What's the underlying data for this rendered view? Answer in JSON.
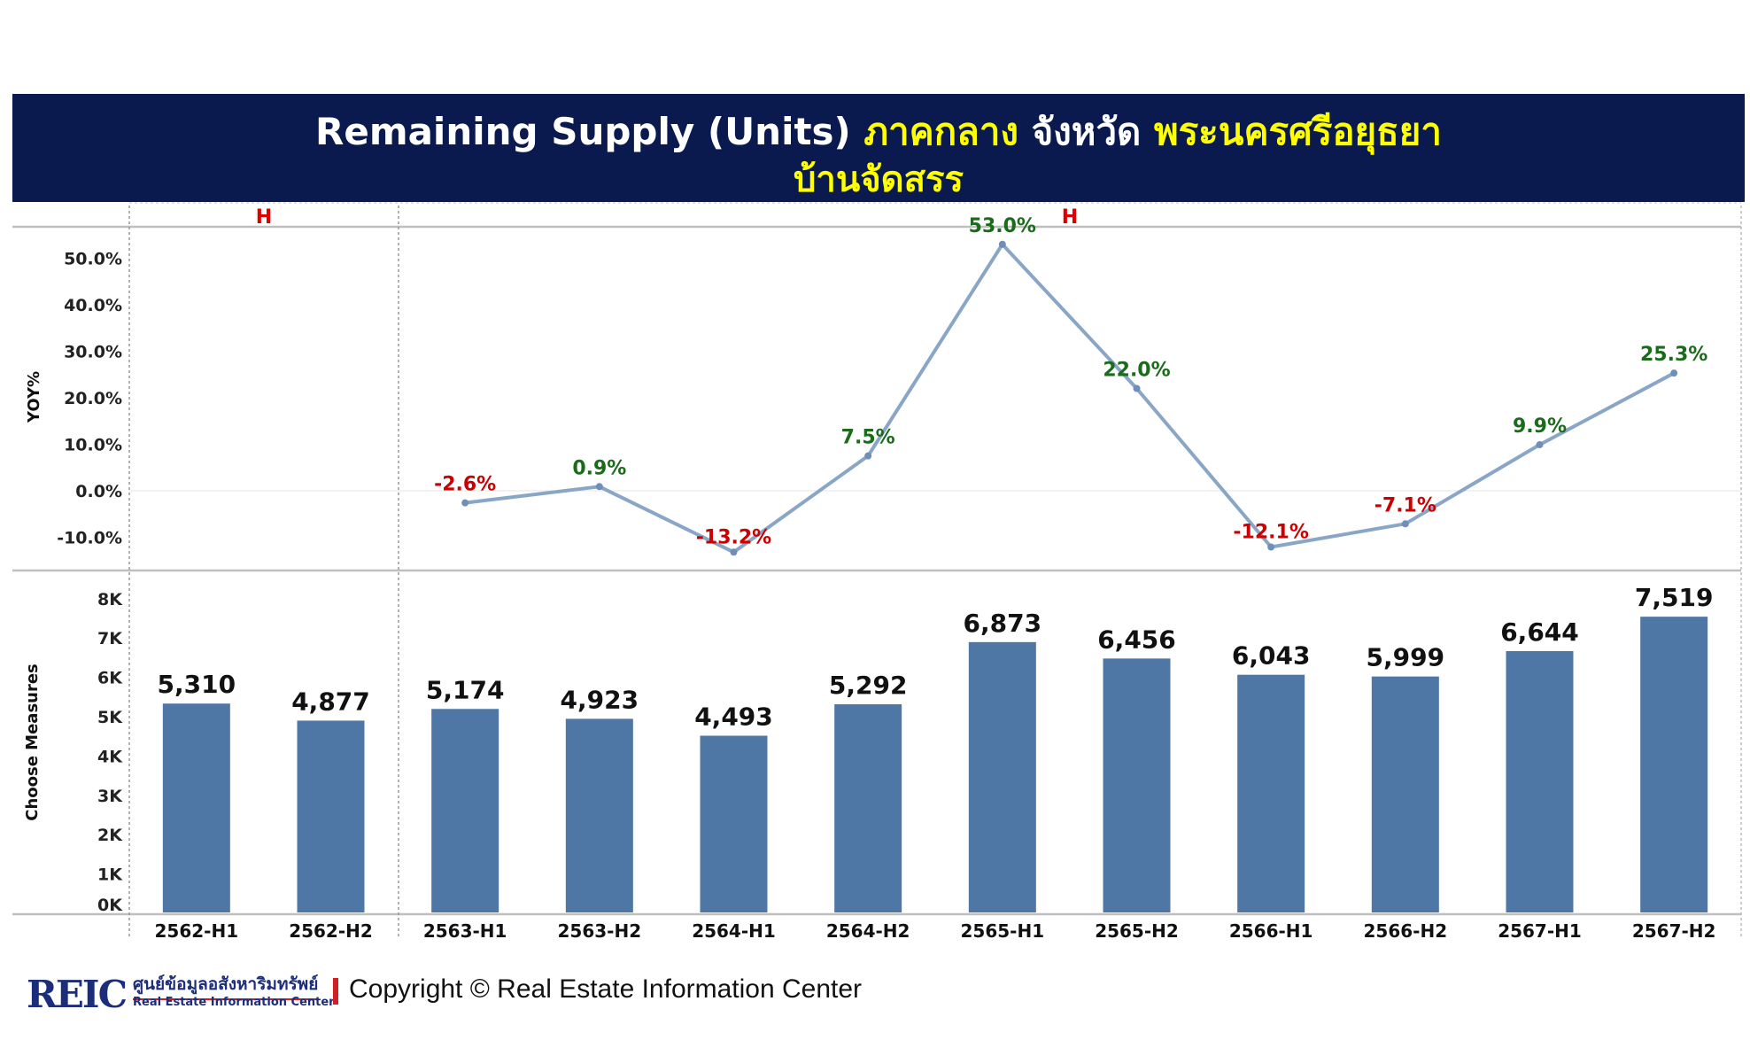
{
  "title": {
    "part1": "Remaining Supply (Units)",
    "region": "ภาคกลาง",
    "province_label": "จังหวัด",
    "province": "พระนครศรีอยุธยา",
    "subtitle": "บ้านจัดสรร"
  },
  "colors": {
    "banner": "#0a1a4f",
    "highlight": "#ffff00",
    "bar": "#4f77a6",
    "line": "#8aa6c6",
    "positive_label": "#1a6b1a",
    "negative_label": "#cc0000",
    "h_label": "#dd0000"
  },
  "chart_data": [
    {
      "type": "line",
      "ylabel": "YOY%",
      "section_labels": [
        "H",
        "H"
      ],
      "yticks": [
        "50.0%",
        "40.0%",
        "30.0%",
        "20.0%",
        "10.0%",
        "0.0%",
        "-10.0%"
      ],
      "ylim": [
        -13.2,
        53.0
      ],
      "categories": [
        "2562-H1",
        "2562-H2",
        "2563-H1",
        "2563-H2",
        "2564-H1",
        "2564-H2",
        "2565-H1",
        "2565-H2",
        "2566-H1",
        "2566-H2",
        "2567-H1",
        "2567-H2"
      ],
      "values": [
        null,
        null,
        -2.6,
        0.9,
        -13.2,
        7.5,
        53.0,
        22.0,
        -12.1,
        -7.1,
        9.9,
        25.3
      ],
      "labels": [
        "",
        "",
        "-2.6%",
        "0.9%",
        "-13.2%",
        "7.5%",
        "53.0%",
        "22.0%",
        "-12.1%",
        "-7.1%",
        "9.9%",
        "25.3%"
      ]
    },
    {
      "type": "bar",
      "ylabel": "Choose Measures",
      "yticks": [
        "8K",
        "7K",
        "6K",
        "5K",
        "4K",
        "3K",
        "2K",
        "1K",
        "0K"
      ],
      "ylim": [
        0,
        8000
      ],
      "categories": [
        "2562-H1",
        "2562-H2",
        "2563-H1",
        "2563-H2",
        "2564-H1",
        "2564-H2",
        "2565-H1",
        "2565-H2",
        "2566-H1",
        "2566-H2",
        "2567-H1",
        "2567-H2"
      ],
      "values": [
        5310,
        4877,
        5174,
        4923,
        4493,
        5292,
        6873,
        6456,
        6043,
        5999,
        6644,
        7519
      ],
      "labels": [
        "5,310",
        "4,877",
        "5,174",
        "4,923",
        "4,493",
        "5,292",
        "6,873",
        "6,456",
        "6,043",
        "5,999",
        "6,644",
        "7,519"
      ]
    }
  ],
  "footer": {
    "logo_text": "REIC",
    "logo_th": "ศูนย์ข้อมูลอสังหาริมทรัพย์",
    "logo_en": "Real Estate Information Center",
    "copyright": "Copyright © Real Estate Information Center"
  }
}
